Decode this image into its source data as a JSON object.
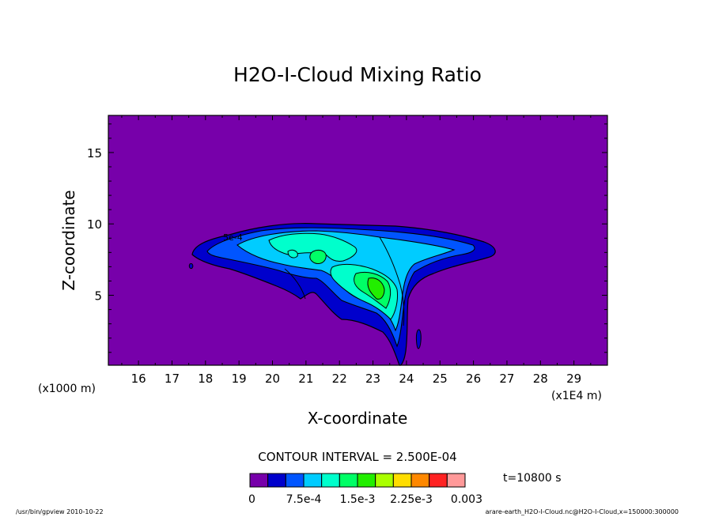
{
  "chart_data": {
    "type": "contour",
    "title": "H2O-I-Cloud Mixing Ratio",
    "xlabel": "X-coordinate",
    "ylabel": "Z-coordinate",
    "x_unit_note": "(x1E4 m)",
    "y_unit_note": "(x1000 m)",
    "xlim": [
      15.1,
      30.0
    ],
    "ylim": [
      0.1,
      17.6
    ],
    "x_ticks": [
      16,
      17,
      18,
      19,
      20,
      21,
      22,
      23,
      24,
      25,
      26,
      27,
      28,
      29
    ],
    "y_ticks": [
      5,
      10,
      15
    ],
    "contour_interval_text": "CONTOUR INTERVAL = 2.500E-04",
    "time_text": "t=10800 s",
    "colorbar": {
      "min": 0,
      "max": 0.003,
      "tick_labels": [
        "0",
        "7.5e-4",
        "1.5e-3",
        "2.25e-3",
        "0.003"
      ],
      "colors": [
        "#7700aa",
        "#0000cc",
        "#0055ff",
        "#00ccff",
        "#00ffcc",
        "#00ff66",
        "#22ee00",
        "#aaff00",
        "#ffdd00",
        "#ff8800",
        "#ff2222",
        "#ff9999"
      ]
    },
    "contour_label": "5e-4",
    "footer_left": "/usr/bin/gpview  2010-10-22",
    "footer_right": "arare-earth_H2O-I-Cloud.nc@H2O-I-Cloud,x=150000:300000"
  }
}
